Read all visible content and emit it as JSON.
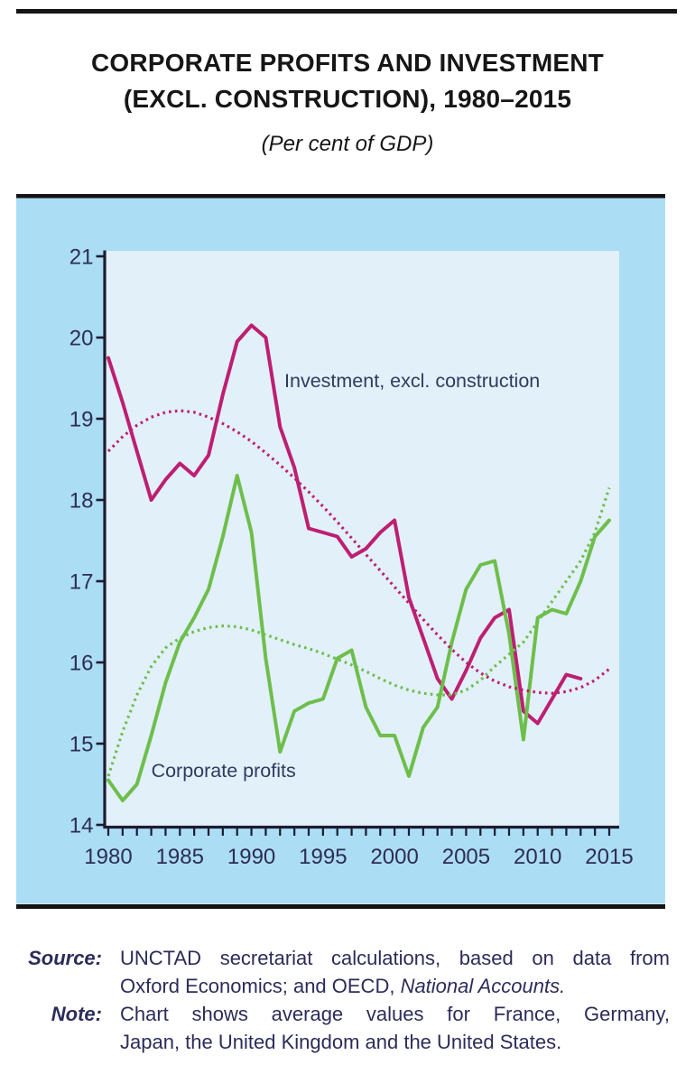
{
  "page": {
    "title_line1": "CORPORATE PROFITS AND INVESTMENT",
    "title_line2": "(EXCL. CONSTRUCTION), 1980–2015",
    "subtitle": "(Per cent of GDP)"
  },
  "footer": {
    "source_label": "Source:",
    "source_line1": "UNCTAD secretariat calculations, based on data from",
    "source_line2_normal": "Oxford Economics; and OECD, ",
    "source_line2_italic": "National Accounts.",
    "note_label": "Note:",
    "note_line1": "Chart shows average values for France, Germany,",
    "note_line2": "Japan, the United Kingdom and the United States."
  },
  "style": {
    "panel_bg": "#abddf4",
    "plot_bg": "#e2f0fa",
    "frame": "#141414",
    "axis": "#1c1c30",
    "tick_label": "#2d2d52",
    "annotation_text": "#303a60",
    "magenta": "#bd1f72",
    "green": "#6ebe4b"
  },
  "chart_data": {
    "type": "line",
    "title": "Corporate profits and investment (excl. construction), 1980–2015",
    "unit": "Per cent of GDP",
    "xlabel": "",
    "ylabel": "",
    "ylim": [
      14,
      21
    ],
    "yticks": [
      14,
      15,
      16,
      17,
      18,
      19,
      20,
      21
    ],
    "xticks_labeled": [
      1980,
      1985,
      1990,
      1995,
      2000,
      2005,
      2010,
      2015
    ],
    "grid": false,
    "legend_position": "in-plot annotations",
    "x": [
      1980,
      1981,
      1982,
      1983,
      1984,
      1985,
      1986,
      1987,
      1988,
      1989,
      1990,
      1991,
      1992,
      1993,
      1994,
      1995,
      1996,
      1997,
      1998,
      1999,
      2000,
      2001,
      2002,
      2003,
      2004,
      2005,
      2006,
      2007,
      2008,
      2009,
      2010,
      2011,
      2012,
      2013,
      2014,
      2015
    ],
    "series": [
      {
        "key": "investment",
        "name": "Investment, excl. construction",
        "style": "solid",
        "color": "#bd1f72",
        "values": [
          19.75,
          19.2,
          18.6,
          18.0,
          18.25,
          18.45,
          18.3,
          18.55,
          19.3,
          19.95,
          20.15,
          20.0,
          18.9,
          18.4,
          17.65,
          17.6,
          17.55,
          17.3,
          17.4,
          17.6,
          17.75,
          16.8,
          16.3,
          15.8,
          15.55,
          15.9,
          16.3,
          16.55,
          16.65,
          15.4,
          15.25,
          15.55,
          15.85,
          15.8,
          null,
          null
        ]
      },
      {
        "key": "corporate-profits",
        "name": "Corporate profits",
        "style": "solid",
        "color": "#6ebe4b",
        "values": [
          14.55,
          14.3,
          14.5,
          15.1,
          15.75,
          16.25,
          16.55,
          16.9,
          17.55,
          18.3,
          17.6,
          16.05,
          14.9,
          15.4,
          15.5,
          15.55,
          16.05,
          16.15,
          15.45,
          15.1,
          15.1,
          14.6,
          15.2,
          15.45,
          16.25,
          16.9,
          17.2,
          17.25,
          16.35,
          15.05,
          16.55,
          16.65,
          16.6,
          17.0,
          17.55,
          17.75
        ]
      },
      {
        "key": "investment-trend",
        "name": "Investment trend (dotted)",
        "style": "dotted",
        "color": "#bd1f72",
        "values": [
          18.6,
          18.78,
          18.92,
          19.02,
          19.08,
          19.1,
          19.08,
          19.02,
          18.94,
          18.84,
          18.72,
          18.58,
          18.43,
          18.27,
          18.1,
          17.92,
          17.73,
          17.53,
          17.33,
          17.13,
          16.93,
          16.73,
          16.53,
          16.34,
          16.16,
          16.0,
          15.87,
          15.77,
          15.7,
          15.66,
          15.63,
          15.62,
          15.64,
          15.69,
          15.78,
          15.92
        ]
      },
      {
        "key": "corporate-profits-trend",
        "name": "Corporate profits trend (dotted)",
        "style": "dotted",
        "color": "#6ebe4b",
        "values": [
          14.6,
          15.15,
          15.6,
          15.95,
          16.18,
          16.3,
          16.38,
          16.43,
          16.45,
          16.44,
          16.4,
          16.34,
          16.28,
          16.22,
          16.17,
          16.11,
          16.04,
          15.97,
          15.89,
          15.8,
          15.72,
          15.66,
          15.62,
          15.6,
          15.6,
          15.66,
          15.78,
          15.95,
          16.1,
          16.25,
          16.5,
          16.75,
          17.0,
          17.25,
          17.6,
          18.15
        ]
      }
    ],
    "annotations": [
      {
        "key": "investment-label",
        "text": "Investment, excl. construction",
        "x": 1992.3,
        "y": 19.48
      },
      {
        "key": "corporate-profits-label",
        "text": "Corporate profits",
        "x": 1983.0,
        "y": 14.68
      }
    ]
  }
}
